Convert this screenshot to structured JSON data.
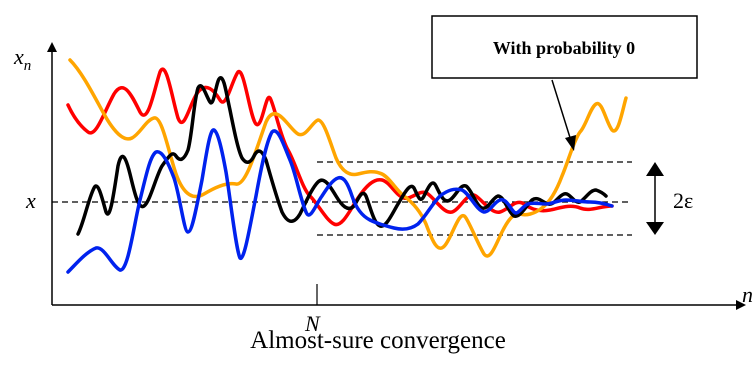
{
  "labels": {
    "y_axis": "x",
    "y_axis_sub": "n",
    "x_axis": "n",
    "limit": "x",
    "n_mark": "N",
    "epsilon": "2ε",
    "callout": "With probability 0",
    "caption": "Almost-sure convergence"
  },
  "colors": {
    "black": "#000000",
    "red": "#ff0000",
    "blue": "#0022ee",
    "orange": "#ffa500"
  }
}
